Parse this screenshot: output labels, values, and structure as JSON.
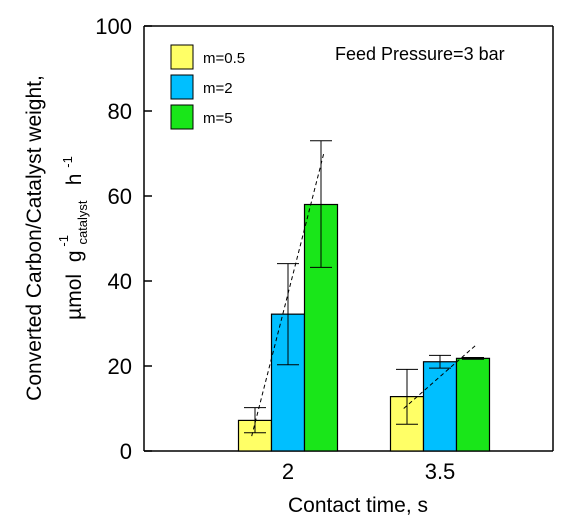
{
  "chart_data": {
    "type": "bar",
    "categories": [
      "2",
      "3.5"
    ],
    "xlabel": "Contact time, s",
    "ylabel_line1": "Converted Carbon/Catalyst weight,",
    "ylabel_unit": "µmol",
    "ylabel_g": "g",
    "ylabel_g_sub": "catalyst",
    "ylabel_g_sup": "-1",
    "ylabel_h": "h",
    "ylabel_h_sup": "-1",
    "ylim": [
      0,
      100
    ],
    "yticks": [
      "0",
      "20",
      "40",
      "60",
      "80",
      "100"
    ],
    "annotation": "Feed Pressure=3 bar",
    "legend_position": "top-left",
    "grid": false,
    "series": [
      {
        "name": "m=0.5",
        "color": "#ffff66",
        "values": [
          7.2,
          12.8
        ],
        "err_low": [
          4.3,
          6.3
        ],
        "err_high": [
          10.2,
          19.2
        ]
      },
      {
        "name": "m=2",
        "color": "#00bfff",
        "values": [
          32.2,
          21.0
        ],
        "err_low": [
          20.3,
          19.5
        ],
        "err_high": [
          44.1,
          22.5
        ]
      },
      {
        "name": "m=5",
        "color": "#19e619",
        "values": [
          58.0,
          21.8
        ],
        "err_low": [
          43.2,
          21.6
        ],
        "err_high": [
          73.0,
          22.0
        ]
      }
    ],
    "trendlines": [
      {
        "x_group": 0,
        "from": 3.5,
        "to": 70.5
      },
      {
        "x_group": 1,
        "from": 10.0,
        "to": 25.0
      }
    ]
  }
}
